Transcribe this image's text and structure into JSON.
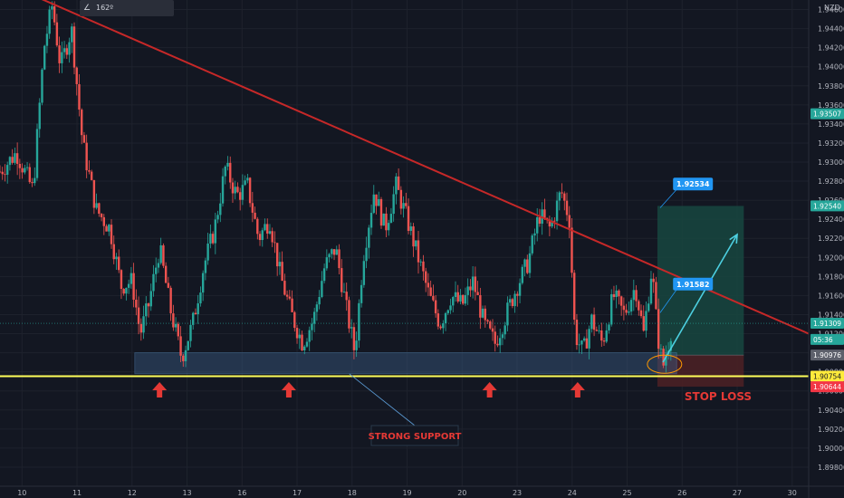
{
  "chart_data": {
    "type": "candlestick",
    "currency": "NZD",
    "indicator": "162º",
    "ylim": [
      1.896,
      1.947
    ],
    "y_ticks": [
      "1.94600",
      "1.94400",
      "1.94200",
      "1.94000",
      "1.93800",
      "1.93600",
      "1.93400",
      "1.93200",
      "1.93000",
      "1.92800",
      "1.92600",
      "1.92400",
      "1.92200",
      "1.92000",
      "1.91800",
      "1.91600",
      "1.91400",
      "1.91200",
      "1.91000",
      "1.90800",
      "1.90600",
      "1.90400",
      "1.90200",
      "1.90000",
      "1.89800"
    ],
    "x_ticks": [
      {
        "label": "10",
        "day": 10
      },
      {
        "label": "11",
        "day": 11
      },
      {
        "label": "12",
        "day": 12
      },
      {
        "label": "13",
        "day": 13
      },
      {
        "label": "16",
        "day": 14
      },
      {
        "label": "17",
        "day": 15
      },
      {
        "label": "18",
        "day": 16
      },
      {
        "label": "19",
        "day": 17
      },
      {
        "label": "20",
        "day": 18
      },
      {
        "label": "23",
        "day": 19
      },
      {
        "label": "24",
        "day": 20
      },
      {
        "label": "25",
        "day": 21
      },
      {
        "label": "26",
        "day": 22
      },
      {
        "label": "27",
        "day": 23
      },
      {
        "label": "30",
        "day": 24
      }
    ],
    "xlim": [
      9.6,
      24.3
    ],
    "price_tags": [
      {
        "value": 1.93507,
        "label": "1.93507",
        "color": "#26a69a"
      },
      {
        "value": 1.9254,
        "label": "1.92540",
        "color": "#26a69a"
      },
      {
        "value": 1.91309,
        "label": "1.91309",
        "color": "#26a69a"
      },
      {
        "value": 1.9114,
        "label": "05:36",
        "color": "#26a69a"
      },
      {
        "value": 1.90976,
        "label": "1.90976",
        "color": "#5d606b"
      },
      {
        "value": 1.90754,
        "label": "1.90754",
        "color": "#ffeb3b"
      },
      {
        "value": 1.90644,
        "label": "1.90644",
        "color": "#f23645"
      }
    ],
    "support_line": 1.90754,
    "support_zone": {
      "x_start": 12.05,
      "x_end": 21.9,
      "y_low": 1.9078,
      "y_high": 1.91
    },
    "trendline": {
      "x1": 9.6,
      "y1": 1.949,
      "x2": 24.3,
      "y2": 1.912
    },
    "long_position": {
      "x_start": 21.55,
      "x_end": 23.12,
      "entry": 1.90976,
      "target": 1.9254,
      "stop": 1.90644
    },
    "projection": {
      "x1": 21.65,
      "y1": 1.909,
      "x2": 23.0,
      "y2": 1.9224
    },
    "callouts": [
      {
        "text": "1.92534",
        "x": 21.9,
        "y": 1.9277,
        "anchor_x": 21.6,
        "anchor_y": 1.9252
      },
      {
        "text": "1.91582",
        "x": 21.9,
        "y": 1.9172,
        "anchor_x": 21.6,
        "anchor_y": 1.9142
      }
    ],
    "arrows_x": [
      12.5,
      14.85,
      18.5,
      20.1
    ],
    "labels": {
      "strong_support": "STRONG SUPPORT",
      "stop_loss": "STOP LOSS"
    },
    "colors": {
      "up": "#26a69a",
      "down": "#ef5350",
      "trendline": "#c62828",
      "support": "#ffff59",
      "zone": "#3a5a82",
      "arrow": "#e53935",
      "callout": "#2196f3",
      "target_fill": "#17473f",
      "stop_fill": "#4a2025",
      "projection": "#4dd0e1"
    },
    "price_path": [
      [
        9.6,
        1.929
      ],
      [
        9.9,
        1.931
      ],
      [
        10.2,
        1.927
      ],
      [
        10.4,
        1.942
      ],
      [
        10.55,
        1.9465
      ],
      [
        10.7,
        1.94
      ],
      [
        10.9,
        1.944
      ],
      [
        11.0,
        1.938
      ],
      [
        11.1,
        1.932
      ],
      [
        11.35,
        1.925
      ],
      [
        11.6,
        1.923
      ],
      [
        11.8,
        1.917
      ],
      [
        12.0,
        1.9175
      ],
      [
        12.15,
        1.912
      ],
      [
        12.3,
        1.915
      ],
      [
        12.5,
        1.921
      ],
      [
        12.7,
        1.9145
      ],
      [
        12.9,
        1.9095
      ],
      [
        13.1,
        1.913
      ],
      [
        13.3,
        1.919
      ],
      [
        13.5,
        1.923
      ],
      [
        13.7,
        1.9295
      ],
      [
        13.9,
        1.9265
      ],
      [
        14.1,
        1.9275
      ],
      [
        14.3,
        1.922
      ],
      [
        14.5,
        1.924
      ],
      [
        14.7,
        1.918
      ],
      [
        14.9,
        1.914
      ],
      [
        15.1,
        1.911
      ],
      [
        15.3,
        1.9135
      ],
      [
        15.5,
        1.919
      ],
      [
        15.7,
        1.921
      ],
      [
        15.9,
        1.9145
      ],
      [
        16.05,
        1.91
      ],
      [
        16.2,
        1.92
      ],
      [
        16.4,
        1.927
      ],
      [
        16.6,
        1.923
      ],
      [
        16.8,
        1.9275
      ],
      [
        17.0,
        1.924
      ],
      [
        17.2,
        1.92
      ],
      [
        17.4,
        1.916
      ],
      [
        17.6,
        1.913
      ],
      [
        17.8,
        1.916
      ],
      [
        18.0,
        1.915
      ],
      [
        18.2,
        1.9175
      ],
      [
        18.4,
        1.913
      ],
      [
        18.6,
        1.911
      ],
      [
        18.8,
        1.914
      ],
      [
        19.0,
        1.917
      ],
      [
        19.2,
        1.9195
      ],
      [
        19.4,
        1.9245
      ],
      [
        19.6,
        1.923
      ],
      [
        19.8,
        1.927
      ],
      [
        19.95,
        1.924
      ],
      [
        20.05,
        1.912
      ],
      [
        20.2,
        1.91
      ],
      [
        20.35,
        1.9135
      ],
      [
        20.55,
        1.911
      ],
      [
        20.75,
        1.916
      ],
      [
        20.95,
        1.914
      ],
      [
        21.15,
        1.917
      ],
      [
        21.3,
        1.912
      ],
      [
        21.45,
        1.919
      ],
      [
        21.55,
        1.912
      ],
      [
        21.65,
        1.9085
      ],
      [
        21.75,
        1.911
      ],
      [
        21.82,
        1.913
      ]
    ]
  }
}
